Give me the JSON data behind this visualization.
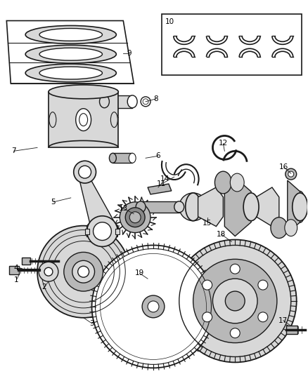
{
  "bg_color": "#ffffff",
  "line_color": "#1a1a1a",
  "gray_light": "#d8d8d8",
  "gray_mid": "#b8b8b8",
  "gray_dark": "#888888"
}
